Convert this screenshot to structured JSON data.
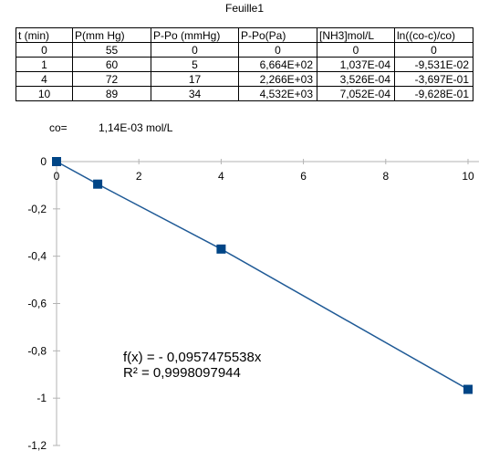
{
  "sheet": {
    "title": "Feuille1"
  },
  "table": {
    "headers": [
      "t (min)",
      "P(mm Hg)",
      "P-Po (mmHg)",
      "P-Po(Pa)",
      "[NH3]mol/L",
      "ln((co-c)/co)"
    ],
    "rows": [
      [
        "0",
        "55",
        "0",
        "0",
        "0",
        "0"
      ],
      [
        "1",
        "60",
        "5",
        "6,664E+02",
        "1,037E-04",
        "-9,531E-02"
      ],
      [
        "4",
        "72",
        "17",
        "2,266E+03",
        "3,526E-04",
        "-3,697E-01"
      ],
      [
        "10",
        "89",
        "34",
        "4,532E+03",
        "7,052E-04",
        "-9,628E-01"
      ]
    ]
  },
  "constant": {
    "label": "co=",
    "value": "1,14E-03 mol/L"
  },
  "chart_data": {
    "type": "scatter",
    "x": [
      0,
      1,
      4,
      10
    ],
    "y": [
      0,
      -0.09531,
      -0.3697,
      -0.9628
    ],
    "xlim": [
      0,
      10
    ],
    "ylim": [
      -1.2,
      0
    ],
    "xticks": [
      0,
      2,
      4,
      6,
      8,
      10
    ],
    "xtick_labels": [
      "0",
      "2",
      "4",
      "6",
      "8",
      "10"
    ],
    "yticks": [
      0,
      -0.2,
      -0.4,
      -0.6,
      -0.8,
      -1,
      -1.2
    ],
    "ytick_labels": [
      "0",
      "-0,2",
      "-0,4",
      "-0,6",
      "-0,8",
      "-1",
      "-1,2"
    ],
    "trendline": {
      "slope": -0.0957475538,
      "intercept": 0
    },
    "equation": "f(x) =  - 0,0957475538x",
    "r_squared": "R² = 0,9998097944",
    "grid": false,
    "legend": "none",
    "colors": {
      "series": "#1f5a96",
      "marker": "#004586",
      "axis": "#b3b3b3"
    }
  }
}
